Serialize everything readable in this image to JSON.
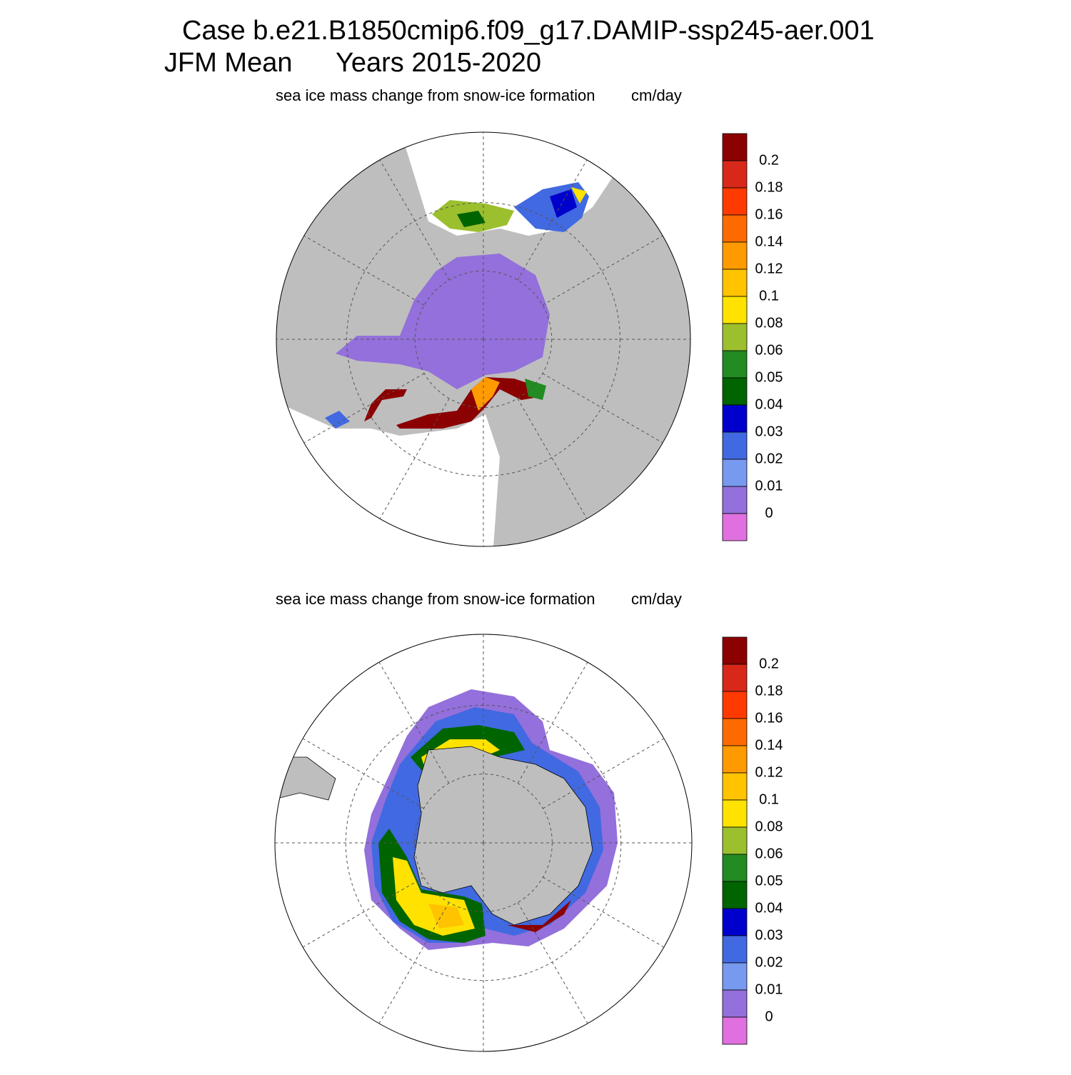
{
  "header": {
    "case": "Case b.e21.B1850cmip6.f09_g17.DAMIP-ssp245-aer.001",
    "season": "JFM Mean",
    "years": "Years 2015-2020"
  },
  "panels": [
    {
      "subtitle": "sea ice mass change from snow-ice formation",
      "units": "cm/day",
      "colorbar": {
        "labels": [
          "0.2",
          "0.18",
          "0.16",
          "0.14",
          "0.12",
          "0.1",
          "0.08",
          "0.06",
          "0.05",
          "0.04",
          "0.03",
          "0.02",
          "0.01",
          "0"
        ],
        "colors": [
          "#8b0000",
          "#d7281a",
          "#ff3a00",
          "#ff6a00",
          "#ff9a00",
          "#ffc300",
          "#ffe200",
          "#9cbf2e",
          "#228b22",
          "#006400",
          "#0000cd",
          "#4169e1",
          "#7799f0",
          "#9370db",
          "#e070e0"
        ]
      }
    },
    {
      "subtitle": "sea ice mass change from snow-ice formation",
      "units": "cm/day",
      "colorbar": {
        "labels": [
          "0.2",
          "0.18",
          "0.16",
          "0.14",
          "0.12",
          "0.1",
          "0.08",
          "0.06",
          "0.05",
          "0.04",
          "0.03",
          "0.02",
          "0.01",
          "0"
        ],
        "colors": [
          "#8b0000",
          "#d7281a",
          "#ff3a00",
          "#ff6a00",
          "#ff9a00",
          "#ffc300",
          "#ffe200",
          "#9cbf2e",
          "#228b22",
          "#006400",
          "#0000cd",
          "#4169e1",
          "#7799f0",
          "#9370db",
          "#e070e0"
        ]
      }
    }
  ]
}
